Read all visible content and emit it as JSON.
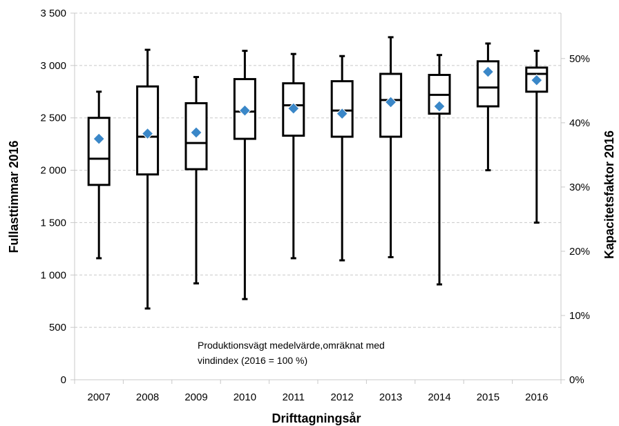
{
  "chart_data": {
    "type": "boxplot",
    "xlabel": "Drifttagningsår",
    "ylabel": "Fullasttimmar 2016",
    "y2label": "Kapacitetsfaktor  2016",
    "ylim": [
      0,
      3500
    ],
    "yticks": [
      "0",
      "500",
      "1 000",
      "1 500",
      "2 000",
      "2 500",
      "3 000",
      "3 500"
    ],
    "y2lim": [
      0,
      0.5707
    ],
    "y2ticks": [
      "0%",
      "10%",
      "20%",
      "30%",
      "40%",
      "50%"
    ],
    "grid": true,
    "annotation": [
      "Produktionsvägt medelvärde,omräknat med",
      "vindindex (2016 = 100 %)"
    ],
    "colors": {
      "box": "#000000",
      "mean_marker": "#3a87c8",
      "grid": "#c8c8c8"
    },
    "categories": [
      "2007",
      "2008",
      "2009",
      "2010",
      "2011",
      "2012",
      "2013",
      "2014",
      "2015",
      "2016"
    ],
    "series": [
      {
        "min": 1160,
        "q1": 1860,
        "median": 2110,
        "q3": 2500,
        "max": 2750,
        "mean": 2300
      },
      {
        "min": 680,
        "q1": 1960,
        "median": 2320,
        "q3": 2800,
        "max": 3150,
        "mean": 2350
      },
      {
        "min": 920,
        "q1": 2010,
        "median": 2260,
        "q3": 2640,
        "max": 2890,
        "mean": 2360
      },
      {
        "min": 770,
        "q1": 2300,
        "median": 2560,
        "q3": 2870,
        "max": 3140,
        "mean": 2570
      },
      {
        "min": 1160,
        "q1": 2330,
        "median": 2620,
        "q3": 2830,
        "max": 3110,
        "mean": 2590
      },
      {
        "min": 1140,
        "q1": 2320,
        "median": 2570,
        "q3": 2850,
        "max": 3090,
        "mean": 2540
      },
      {
        "min": 1170,
        "q1": 2320,
        "median": 2670,
        "q3": 2920,
        "max": 3270,
        "mean": 2650
      },
      {
        "min": 910,
        "q1": 2540,
        "median": 2720,
        "q3": 2910,
        "max": 3100,
        "mean": 2610
      },
      {
        "min": 2000,
        "q1": 2610,
        "median": 2790,
        "q3": 3040,
        "max": 3210,
        "mean": 2940
      },
      {
        "min": 1500,
        "q1": 2750,
        "median": 2920,
        "q3": 2980,
        "max": 3140,
        "mean": 2860
      }
    ]
  }
}
